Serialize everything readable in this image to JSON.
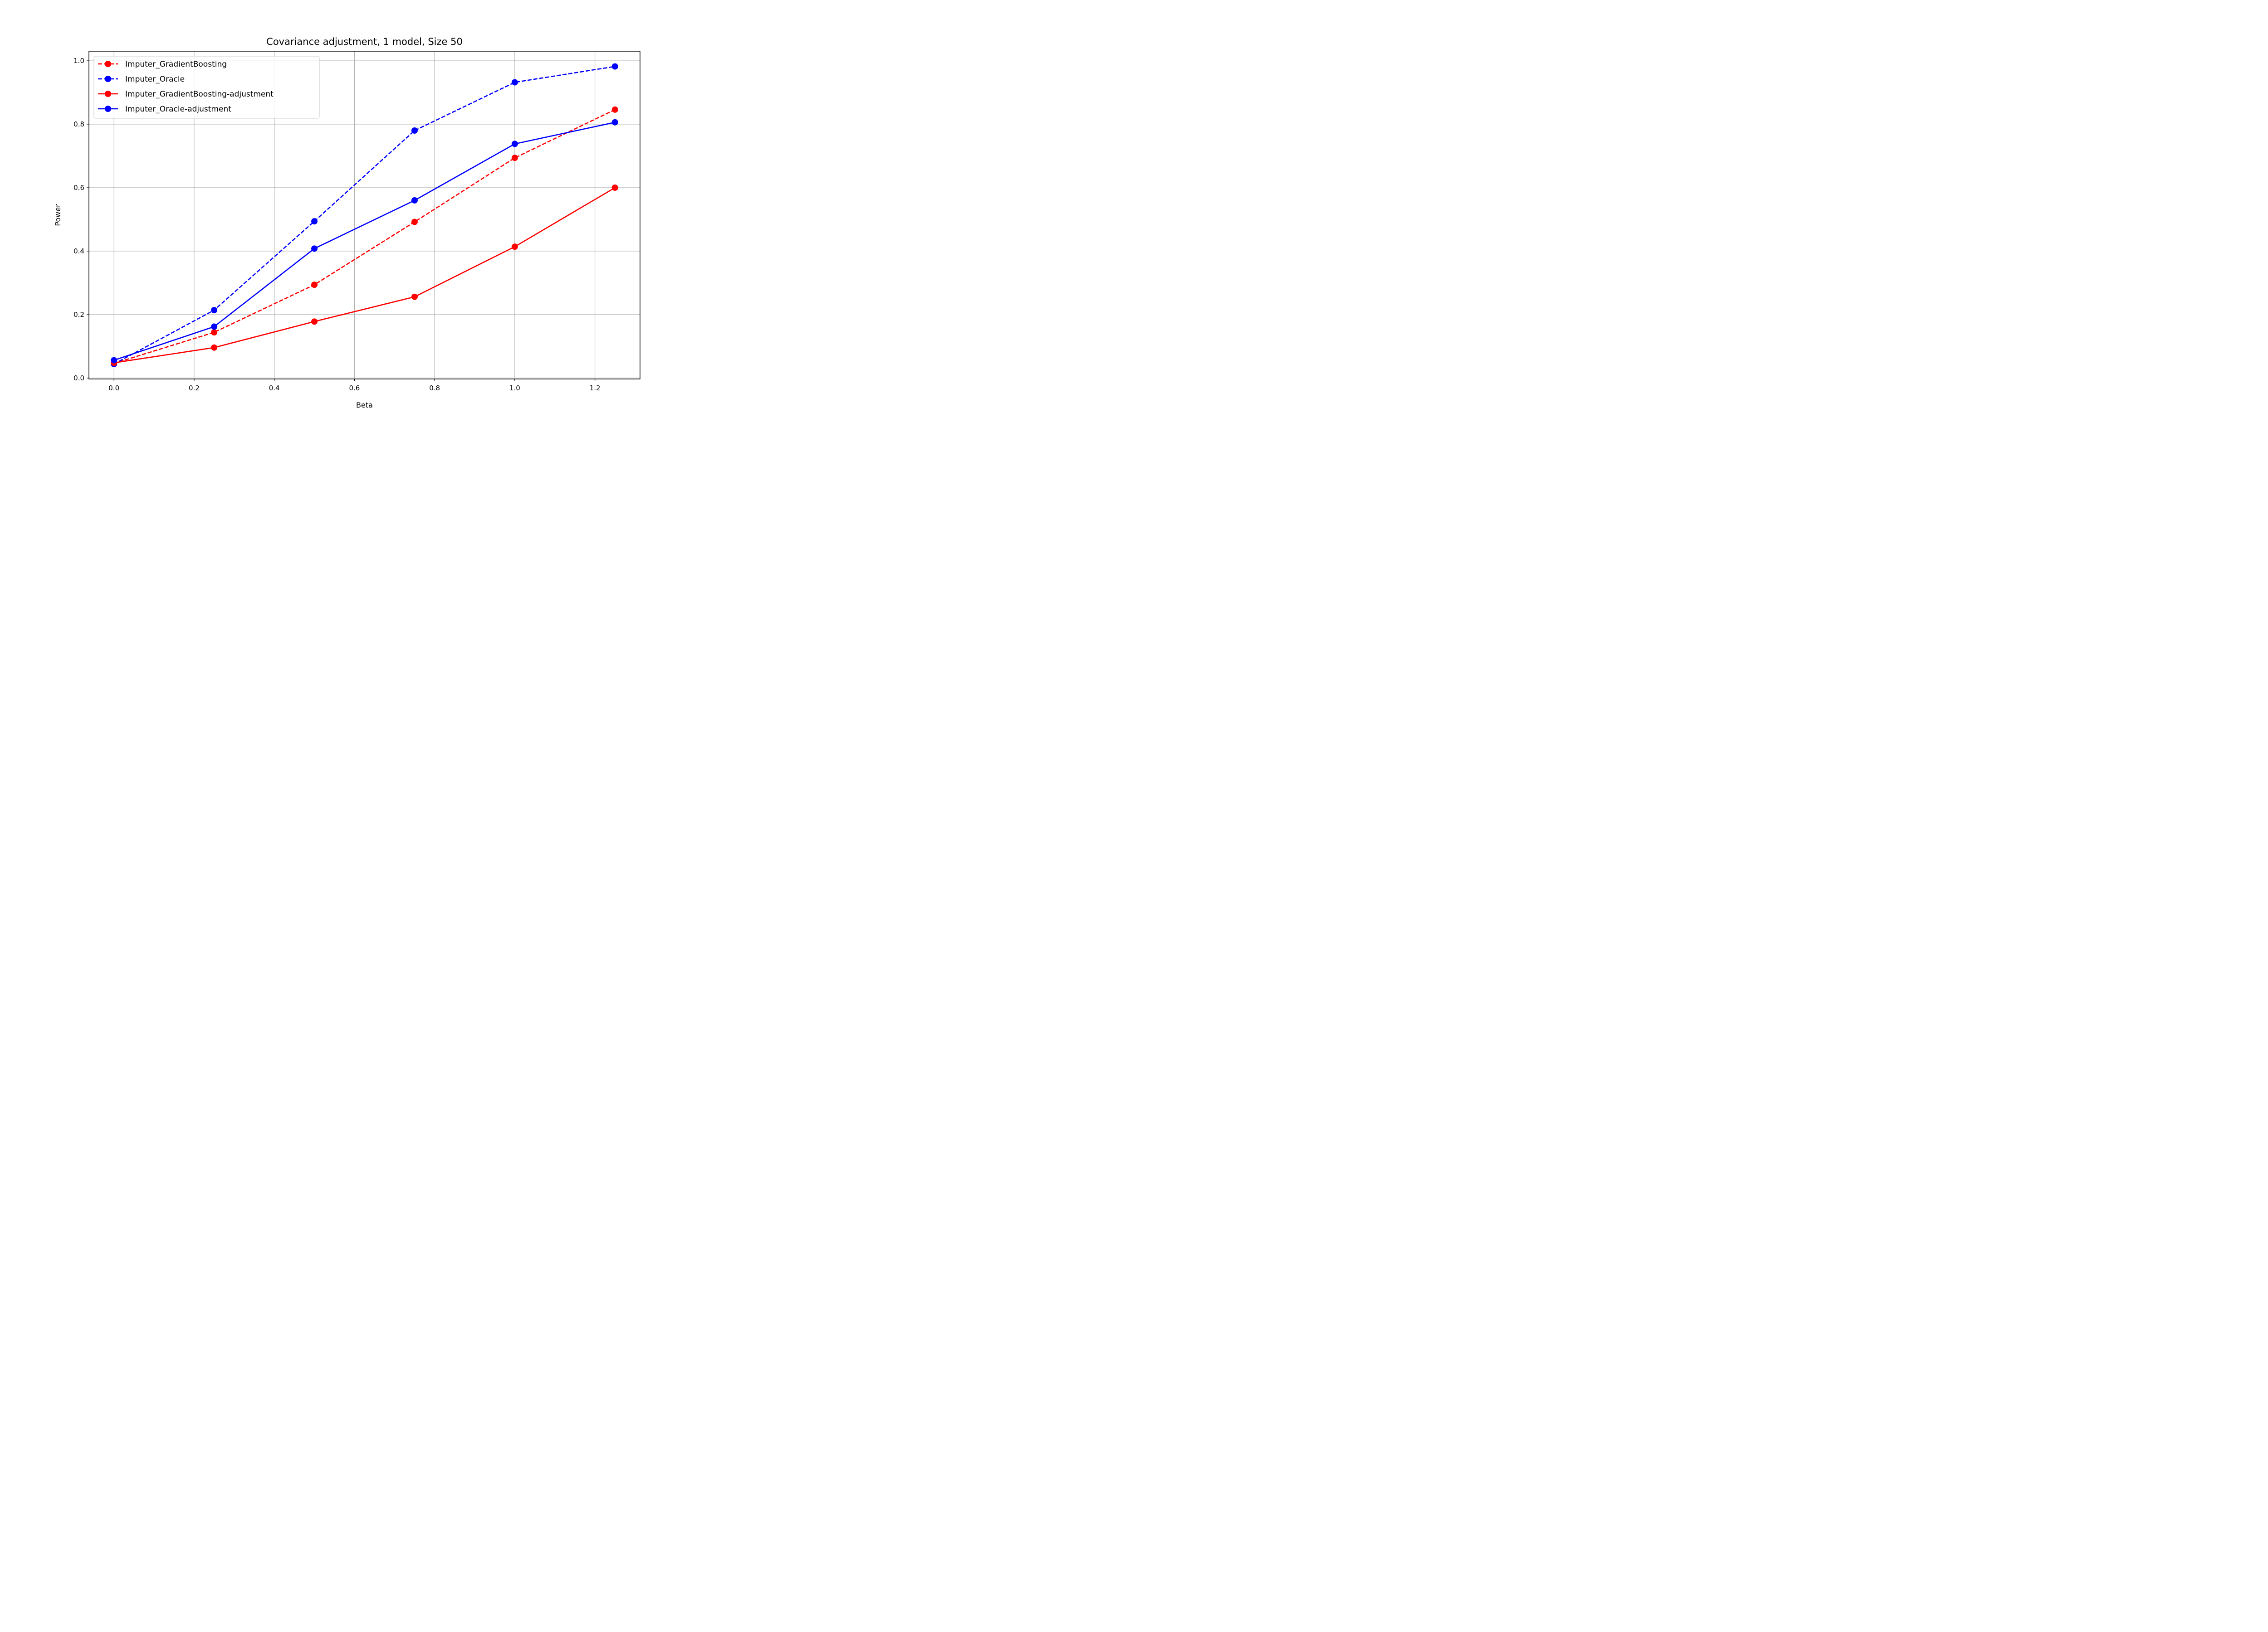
{
  "chart_data": {
    "type": "line",
    "title": "Covariance adjustment, 1 model, Size 50",
    "xlabel": "Beta",
    "ylabel": "Power",
    "xlim": [
      -0.0625,
      1.3125
    ],
    "ylim": [
      -0.003,
      1.03
    ],
    "xticks": [
      0.0,
      0.2,
      0.4,
      0.6,
      0.8,
      1.0,
      1.2
    ],
    "xtick_labels": [
      "0.0",
      "0.2",
      "0.4",
      "0.6",
      "0.8",
      "1.0",
      "1.2"
    ],
    "yticks": [
      0.0,
      0.2,
      0.4,
      0.6,
      0.8,
      1.0
    ],
    "ytick_labels": [
      "0.0",
      "0.2",
      "0.4",
      "0.6",
      "0.8",
      "1.0"
    ],
    "grid": true,
    "legend_position": "top-left",
    "x": [
      0.0,
      0.25,
      0.5,
      0.75,
      1.0,
      1.25
    ],
    "series": [
      {
        "name": "Imputer_GradientBoosting",
        "color": "#ff0000",
        "dashed": true,
        "values": [
          0.046,
          0.144,
          0.294,
          0.492,
          0.694,
          0.846
        ]
      },
      {
        "name": "Imputer_Oracle",
        "color": "#0000ff",
        "dashed": true,
        "values": [
          0.044,
          0.214,
          0.494,
          0.78,
          0.932,
          0.982
        ]
      },
      {
        "name": "Imputer_GradientBoosting-adjustment",
        "color": "#ff0000",
        "dashed": false,
        "values": [
          0.048,
          0.096,
          0.178,
          0.256,
          0.414,
          0.6
        ]
      },
      {
        "name": "Imputer_Oracle-adjustment",
        "color": "#0000ff",
        "dashed": false,
        "values": [
          0.056,
          0.162,
          0.408,
          0.56,
          0.738,
          0.806
        ]
      }
    ]
  }
}
